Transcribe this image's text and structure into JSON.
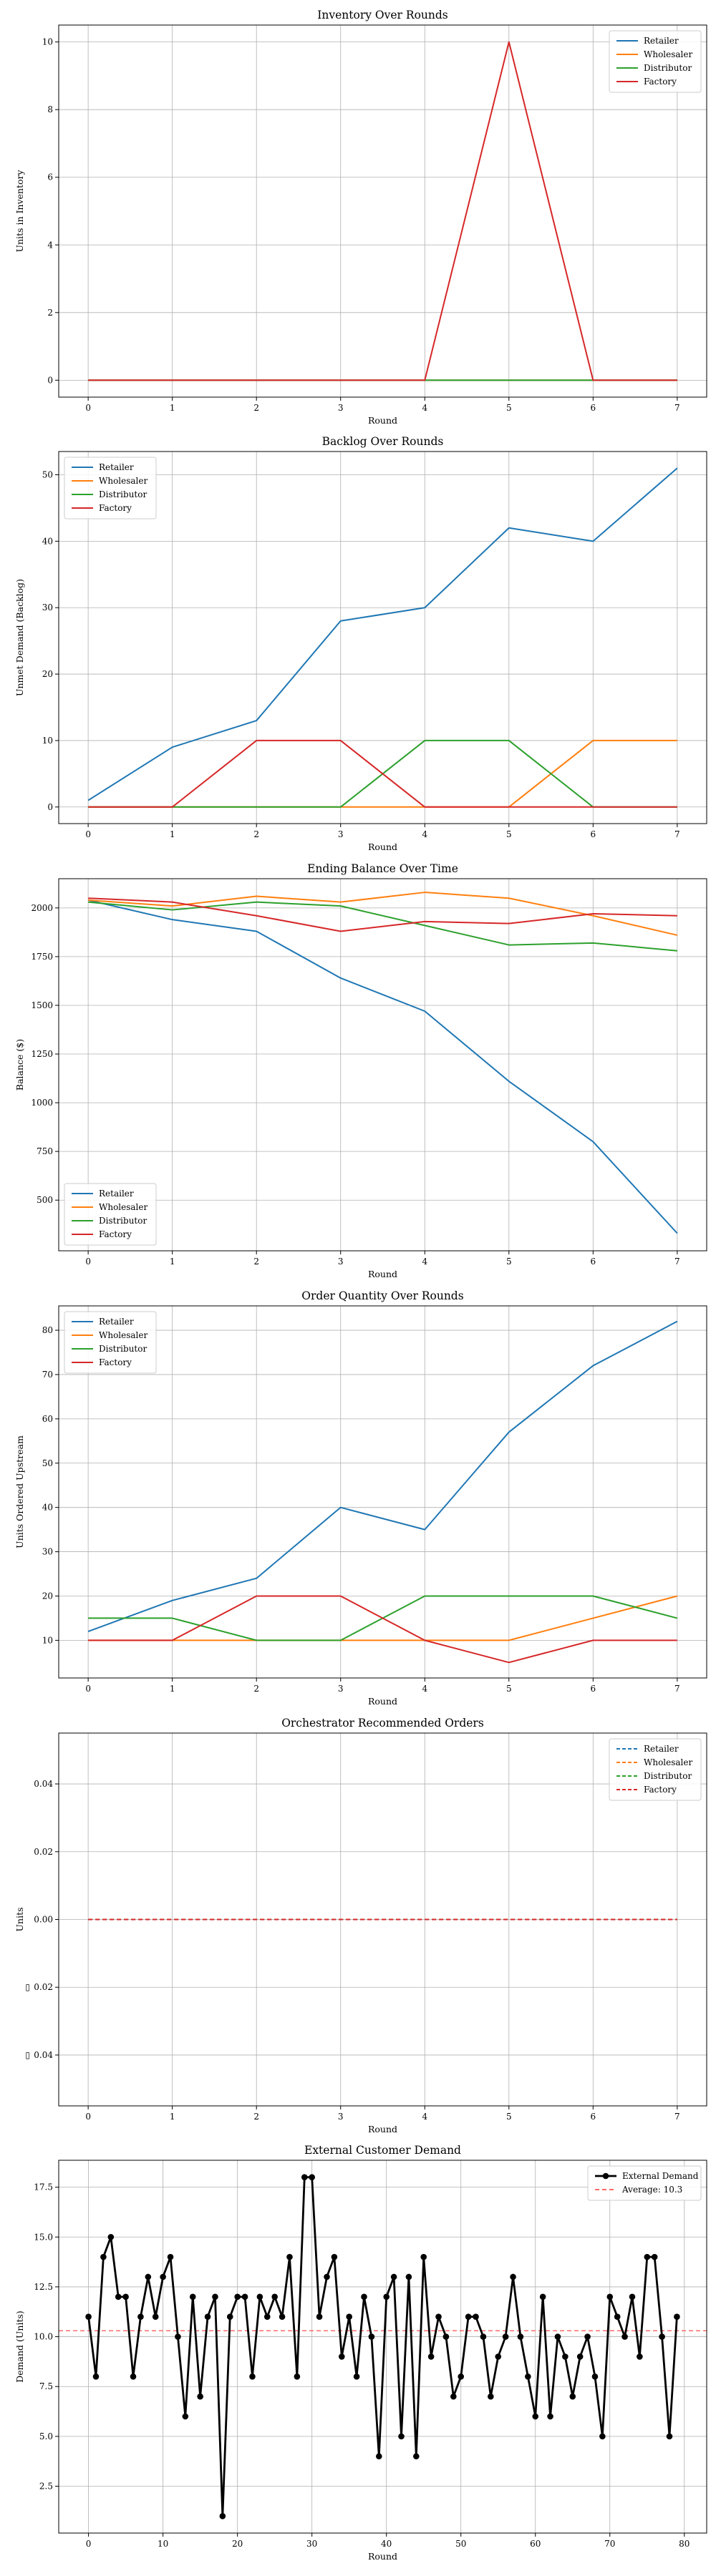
{
  "colors": {
    "retailer": "#1f77b4",
    "wholesaler": "#ff7f0e",
    "distributor": "#2ca02c",
    "factory": "#d62728",
    "demand": "#000000",
    "average": "#ff6b6b"
  },
  "chart_data": [
    {
      "type": "line",
      "title": "Inventory Over Rounds",
      "xlabel": "Round",
      "ylabel": "Units in Inventory",
      "x": [
        0,
        1,
        2,
        3,
        4,
        5,
        6,
        7
      ],
      "xlim": [
        -0.35,
        7.35
      ],
      "ylim": [
        -0.5,
        10.5
      ],
      "yticks": [
        0,
        2,
        4,
        6,
        8,
        10
      ],
      "ytick_labels": [
        "0",
        "2",
        "4",
        "6",
        "8",
        "10"
      ],
      "grid": true,
      "legend": "upper right",
      "series": [
        {
          "name": "Retailer",
          "color": "#1f77b4",
          "values": [
            0,
            0,
            0,
            0,
            0,
            0,
            0,
            0
          ]
        },
        {
          "name": "Wholesaler",
          "color": "#ff7f0e",
          "values": [
            0,
            0,
            0,
            0,
            0,
            0,
            0,
            0
          ]
        },
        {
          "name": "Distributor",
          "color": "#2ca02c",
          "values": [
            0,
            0,
            0,
            0,
            0,
            0,
            0,
            0
          ]
        },
        {
          "name": "Factory",
          "color": "#d62728",
          "values": [
            0,
            0,
            0,
            0,
            0,
            10,
            0,
            0
          ]
        }
      ]
    },
    {
      "type": "line",
      "title": "Backlog Over Rounds",
      "xlabel": "Round",
      "ylabel": "Unmet Demand (Backlog)",
      "x": [
        0,
        1,
        2,
        3,
        4,
        5,
        6,
        7
      ],
      "xlim": [
        -0.35,
        7.35
      ],
      "ylim": [
        -2.5,
        53.5
      ],
      "yticks": [
        0,
        10,
        20,
        30,
        40,
        50
      ],
      "ytick_labels": [
        "0",
        "10",
        "20",
        "30",
        "40",
        "50"
      ],
      "grid": true,
      "legend": "upper left",
      "series": [
        {
          "name": "Retailer",
          "color": "#1f77b4",
          "values": [
            1,
            9,
            13,
            28,
            30,
            42,
            40,
            51
          ]
        },
        {
          "name": "Wholesaler",
          "color": "#ff7f0e",
          "values": [
            0,
            0,
            0,
            0,
            0,
            0,
            10,
            10
          ]
        },
        {
          "name": "Distributor",
          "color": "#2ca02c",
          "values": [
            0,
            0,
            0,
            0,
            10,
            10,
            0,
            0
          ]
        },
        {
          "name": "Factory",
          "color": "#d62728",
          "values": [
            0,
            0,
            10,
            10,
            0,
            0,
            0,
            0
          ]
        }
      ]
    },
    {
      "type": "line",
      "title": "Ending Balance Over Time",
      "xlabel": "Round",
      "ylabel": "Balance ($)",
      "x": [
        0,
        1,
        2,
        3,
        4,
        5,
        6,
        7
      ],
      "xlim": [
        -0.35,
        7.35
      ],
      "ylim": [
        240,
        2150
      ],
      "yticks": [
        500,
        750,
        1000,
        1250,
        1500,
        1750,
        2000
      ],
      "ytick_labels": [
        "500",
        "750",
        "1000",
        "1250",
        "1500",
        "1750",
        "2000"
      ],
      "grid": true,
      "legend": "lower left",
      "series": [
        {
          "name": "Retailer",
          "color": "#1f77b4",
          "values": [
            2040,
            1940,
            1880,
            1640,
            1470,
            1110,
            800,
            330
          ]
        },
        {
          "name": "Wholesaler",
          "color": "#ff7f0e",
          "values": [
            2040,
            2010,
            2060,
            2030,
            2080,
            2050,
            1960,
            1860
          ]
        },
        {
          "name": "Distributor",
          "color": "#2ca02c",
          "values": [
            2030,
            1990,
            2030,
            2010,
            1910,
            1810,
            1820,
            1780
          ]
        },
        {
          "name": "Factory",
          "color": "#d62728",
          "values": [
            2050,
            2030,
            1960,
            1880,
            1930,
            1920,
            1970,
            1960
          ]
        }
      ]
    },
    {
      "type": "line",
      "title": "Order Quantity Over Rounds",
      "xlabel": "Round",
      "ylabel": "Units Ordered Upstream",
      "x": [
        0,
        1,
        2,
        3,
        4,
        5,
        6,
        7
      ],
      "xlim": [
        -0.35,
        7.35
      ],
      "ylim": [
        1.5,
        85.5
      ],
      "yticks": [
        10,
        20,
        30,
        40,
        50,
        60,
        70,
        80
      ],
      "ytick_labels": [
        "10",
        "20",
        "30",
        "40",
        "50",
        "60",
        "70",
        "80"
      ],
      "grid": true,
      "legend": "upper left",
      "series": [
        {
          "name": "Retailer",
          "color": "#1f77b4",
          "values": [
            12,
            19,
            24,
            40,
            35,
            57,
            72,
            82
          ]
        },
        {
          "name": "Wholesaler",
          "color": "#ff7f0e",
          "values": [
            10,
            10,
            10,
            10,
            10,
            10,
            15,
            20
          ]
        },
        {
          "name": "Distributor",
          "color": "#2ca02c",
          "values": [
            15,
            15,
            10,
            10,
            20,
            20,
            20,
            15
          ]
        },
        {
          "name": "Factory",
          "color": "#d62728",
          "values": [
            10,
            10,
            20,
            20,
            10,
            5,
            10,
            10
          ]
        }
      ]
    },
    {
      "type": "line",
      "title": "Orchestrator Recommended Orders",
      "xlabel": "Round",
      "ylabel": "Units",
      "x": [
        0,
        1,
        2,
        3,
        4,
        5,
        6,
        7
      ],
      "xlim": [
        -0.35,
        7.35
      ],
      "ylim": [
        -0.055,
        0.055
      ],
      "yticks": [
        -0.04,
        -0.02,
        0.0,
        0.02,
        0.04
      ],
      "ytick_labels": [
        "0.04",
        "0.02",
        "0.00",
        "0.02",
        "0.04"
      ],
      "ytick_prefix": [
        "▯",
        "▯",
        "",
        "",
        ""
      ],
      "grid": true,
      "legend": "upper right",
      "dashed": true,
      "series": [
        {
          "name": "Retailer",
          "color": "#1f77b4",
          "values": [
            0,
            0,
            0,
            0,
            0,
            0,
            0,
            0
          ]
        },
        {
          "name": "Wholesaler",
          "color": "#ff7f0e",
          "values": [
            0,
            0,
            0,
            0,
            0,
            0,
            0,
            0
          ]
        },
        {
          "name": "Distributor",
          "color": "#2ca02c",
          "values": [
            0,
            0,
            0,
            0,
            0,
            0,
            0,
            0
          ]
        },
        {
          "name": "Factory",
          "color": "#d62728",
          "values": [
            0,
            0,
            0,
            0,
            0,
            0,
            0,
            0
          ]
        }
      ]
    },
    {
      "type": "line",
      "title": "External Customer Demand",
      "xlabel": "Round",
      "ylabel": "Demand (Units)",
      "xlim": [
        -4,
        83
      ],
      "ylim": [
        0.15,
        18.85
      ],
      "xticks": [
        0,
        10,
        20,
        30,
        40,
        50,
        60,
        70,
        80
      ],
      "yticks": [
        2.5,
        5.0,
        7.5,
        10.0,
        12.5,
        15.0,
        17.5
      ],
      "ytick_labels": [
        "2.5",
        "5.0",
        "7.5",
        "10.0",
        "12.5",
        "15.0",
        "17.5"
      ],
      "grid": true,
      "legend": "upper right",
      "markers": true,
      "series": [
        {
          "name": "External Demand",
          "color": "#000000",
          "values": [
            11,
            8,
            14,
            15,
            12,
            12,
            8,
            11,
            13,
            11,
            13,
            14,
            10,
            6,
            12,
            7,
            11,
            12,
            1,
            11,
            12,
            12,
            8,
            12,
            11,
            12,
            11,
            14,
            8,
            18,
            18,
            11,
            13,
            14,
            9,
            11,
            8,
            12,
            10,
            4,
            12,
            13,
            5,
            13,
            4,
            14,
            9,
            11,
            10,
            7,
            8,
            11,
            11,
            10,
            7,
            9,
            10,
            13,
            10,
            8,
            6,
            12,
            6,
            10,
            9,
            7,
            9,
            10,
            8,
            5,
            12,
            11,
            10,
            12,
            9,
            14,
            14,
            10,
            5,
            11
          ]
        }
      ],
      "reference_line": {
        "label": "Average: 10.3",
        "value": 10.3,
        "color": "#ff6b6b"
      }
    }
  ]
}
